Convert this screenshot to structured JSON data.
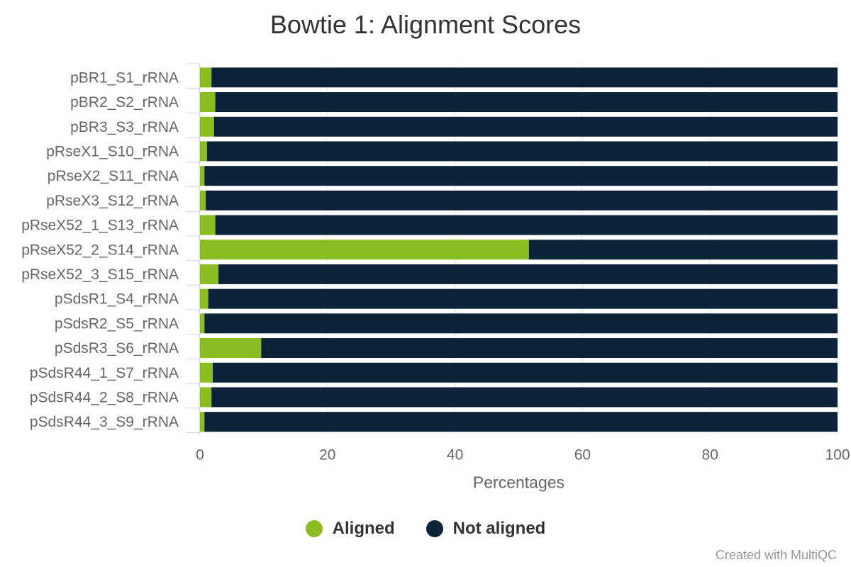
{
  "chart_data": {
    "type": "bar",
    "orientation": "horizontal",
    "stacked": true,
    "title": "Bowtie 1: Alignment Scores",
    "xlabel": "Percentages",
    "ylabel": "",
    "xlim": [
      0,
      100
    ],
    "xticks": [
      "0",
      "20",
      "40",
      "60",
      "80",
      "100"
    ],
    "grid": true,
    "legend_position": "bottom-center",
    "categories": [
      "pBR1_S1_rRNA",
      "pBR2_S2_rRNA",
      "pBR3_S3_rRNA",
      "pRseX1_S10_rRNA",
      "pRseX2_S11_rRNA",
      "pRseX3_S12_rRNA",
      "pRseX52_1_S13_rRNA",
      "pRseX52_2_S14_rRNA",
      "pRseX52_3_S15_rRNA",
      "pSdsR1_S4_rRNA",
      "pSdsR2_S5_rRNA",
      "pSdsR3_S6_rRNA",
      "pSdsR44_1_S7_rRNA",
      "pSdsR44_2_S8_rRNA",
      "pSdsR44_3_S9_rRNA"
    ],
    "series": [
      {
        "name": "Aligned",
        "color": "#8bbc21",
        "values": [
          1.8,
          2.4,
          2.2,
          1.1,
          0.7,
          0.9,
          2.4,
          51.6,
          2.9,
          1.3,
          0.7,
          9.6,
          2.0,
          1.8,
          0.7
        ]
      },
      {
        "name": "Not aligned",
        "color": "#0d233a",
        "values": [
          98.2,
          97.6,
          97.8,
          98.9,
          99.3,
          99.1,
          97.6,
          48.4,
          97.1,
          98.7,
          99.3,
          90.4,
          98.0,
          98.2,
          99.3
        ]
      }
    ]
  },
  "credits": "Created with MultiQC"
}
